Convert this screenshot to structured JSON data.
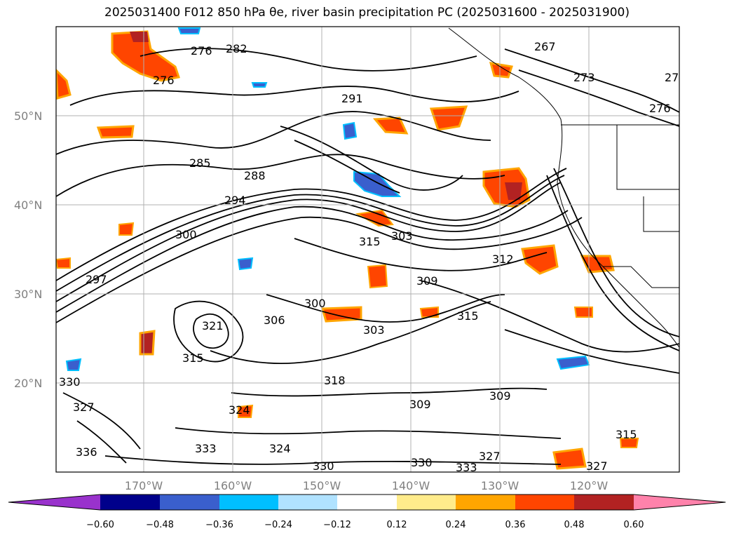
{
  "title": "2025031400 F012 850 hPa θe, river basin precipitation PC (2025031600 - 2025031900)",
  "map": {
    "lat_labels": [
      "50°N",
      "40°N",
      "30°N",
      "20°N"
    ],
    "lon_labels": [
      "170°W",
      "160°W",
      "150°W",
      "140°W",
      "130°W",
      "120°W"
    ],
    "contour_labels": [
      "276",
      "282",
      "276",
      "267",
      "273",
      "27",
      "276",
      "291",
      "285",
      "288",
      "294",
      "300",
      "303",
      "312",
      "315",
      "297",
      "309",
      "300",
      "306",
      "315",
      "303",
      "318",
      "321",
      "315",
      "309",
      "309",
      "315",
      "330",
      "327",
      "324",
      "333",
      "336",
      "330",
      "330",
      "333",
      "327",
      "324",
      "327"
    ],
    "contour_color": "#000000"
  },
  "colorbar": {
    "tick_labels": [
      "−0.60",
      "−0.48",
      "−0.36",
      "−0.24",
      "−0.12",
      "0.12",
      "0.24",
      "0.36",
      "0.48",
      "0.60"
    ],
    "colors": [
      "#9932cc",
      "#00008b",
      "#3a5fcd",
      "#00bfff",
      "#b0e2ff",
      "#ffffff",
      "#ffec8b",
      "#ffa500",
      "#ff4500",
      "#b22222",
      "#ff82ab"
    ]
  }
}
